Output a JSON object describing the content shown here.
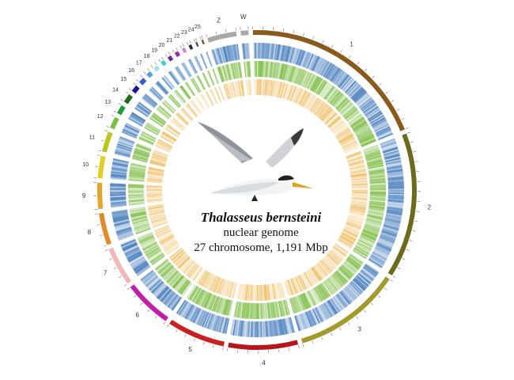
{
  "figure": {
    "species": "Thalasseus bernsteini",
    "subtitle": "nuclear genome",
    "stats": "27 chromosome, 1,191 Mbp",
    "bird_icon": "tern-bird-icon"
  },
  "chromosomes": [
    {
      "label": "1",
      "size": 196,
      "color": "#8a5a1c"
    },
    {
      "label": "2",
      "size": 150,
      "color": "#6e6a1d"
    },
    {
      "label": "3",
      "size": 112,
      "color": "#a39a2b"
    },
    {
      "label": "4",
      "size": 72,
      "color": "#b8161c"
    },
    {
      "label": "5",
      "size": 60,
      "color": "#cc1f1f"
    },
    {
      "label": "6",
      "size": 50,
      "color": "#c21ea8"
    },
    {
      "label": "7",
      "size": 40,
      "color": "#f2b8b8"
    },
    {
      "label": "8",
      "size": 33,
      "color": "#e28a2a"
    },
    {
      "label": "9",
      "size": 27,
      "color": "#e8a32a"
    },
    {
      "label": "10",
      "size": 23,
      "color": "#e0d21c"
    },
    {
      "label": "11",
      "size": 21,
      "color": "#b9c61a"
    },
    {
      "label": "12",
      "size": 12,
      "color": "#7ac143"
    },
    {
      "label": "13",
      "size": 9,
      "color": "#1f9a3a"
    },
    {
      "label": "14",
      "size": 9,
      "color": "#1f6a1f"
    },
    {
      "label": "15",
      "size": 7,
      "color": "#1a1a9a"
    },
    {
      "label": "16",
      "size": 6,
      "color": "#3a5ad0"
    },
    {
      "label": "17",
      "size": 5,
      "color": "#5aa0d8"
    },
    {
      "label": "18",
      "size": 5,
      "color": "#a8e0f0"
    },
    {
      "label": "19",
      "size": 4,
      "color": "#38d0d0"
    },
    {
      "label": "20",
      "size": 4,
      "color": "#6a2aa0"
    },
    {
      "label": "21",
      "size": 4,
      "color": "#9a2ab8"
    },
    {
      "label": "22",
      "size": 3,
      "color": "#d27ad8"
    },
    {
      "label": "23",
      "size": 3,
      "color": "#2a2a2a"
    },
    {
      "label": "24",
      "size": 2,
      "color": "#555555"
    },
    {
      "label": "25",
      "size": 2,
      "color": "#8a5a1c"
    },
    {
      "label": "Z",
      "size": 30,
      "color": "#a8a8a8"
    },
    {
      "label": "W",
      "size": 8,
      "color": "#a8a8a8"
    }
  ],
  "tracks": [
    {
      "name": "",
      "hue": "blue",
      "color": "#2e6db4"
    },
    {
      "name": "",
      "hue": "green",
      "color": "#6fb52f"
    },
    {
      "name": "",
      "hue": "yellow",
      "color": "#e8a11e"
    }
  ]
}
